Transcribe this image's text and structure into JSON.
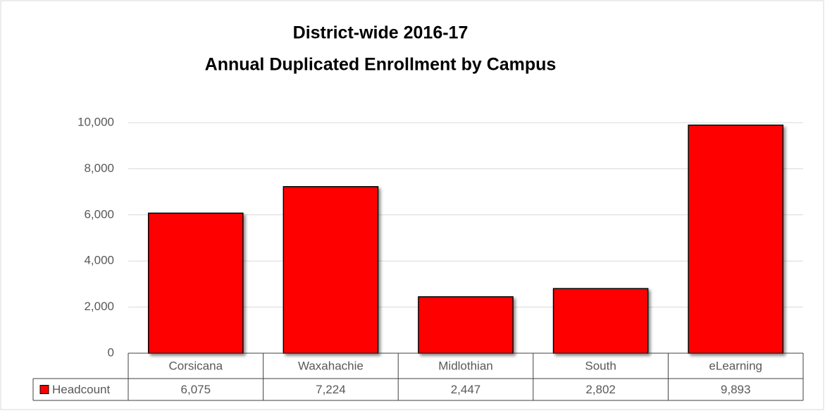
{
  "chart_data": {
    "type": "bar",
    "title": [
      "District-wide 2016-17",
      "Annual Duplicated Enrollment by Campus"
    ],
    "categories": [
      "Corsicana",
      "Waxahachie",
      "Midlothian",
      "South",
      "eLearning"
    ],
    "series": [
      {
        "name": "Headcount",
        "color": "#ff0000",
        "values": [
          6075,
          7224,
          2447,
          2802,
          9893
        ],
        "value_labels": [
          "6,075",
          "7,224",
          "2,447",
          "2,802",
          "9,893"
        ]
      }
    ],
    "ylim": [
      0,
      10000
    ],
    "yticks": [
      0,
      {
        "value": 2000,
        "label": "2,000"
      },
      {
        "value": 4000,
        "label": "4,000"
      },
      {
        "value": 6000,
        "label": "6,000"
      },
      {
        "value": 8000,
        "label": "8,000"
      },
      {
        "value": 10000,
        "label": "10,000"
      }
    ],
    "grid": true,
    "data_table": true
  }
}
